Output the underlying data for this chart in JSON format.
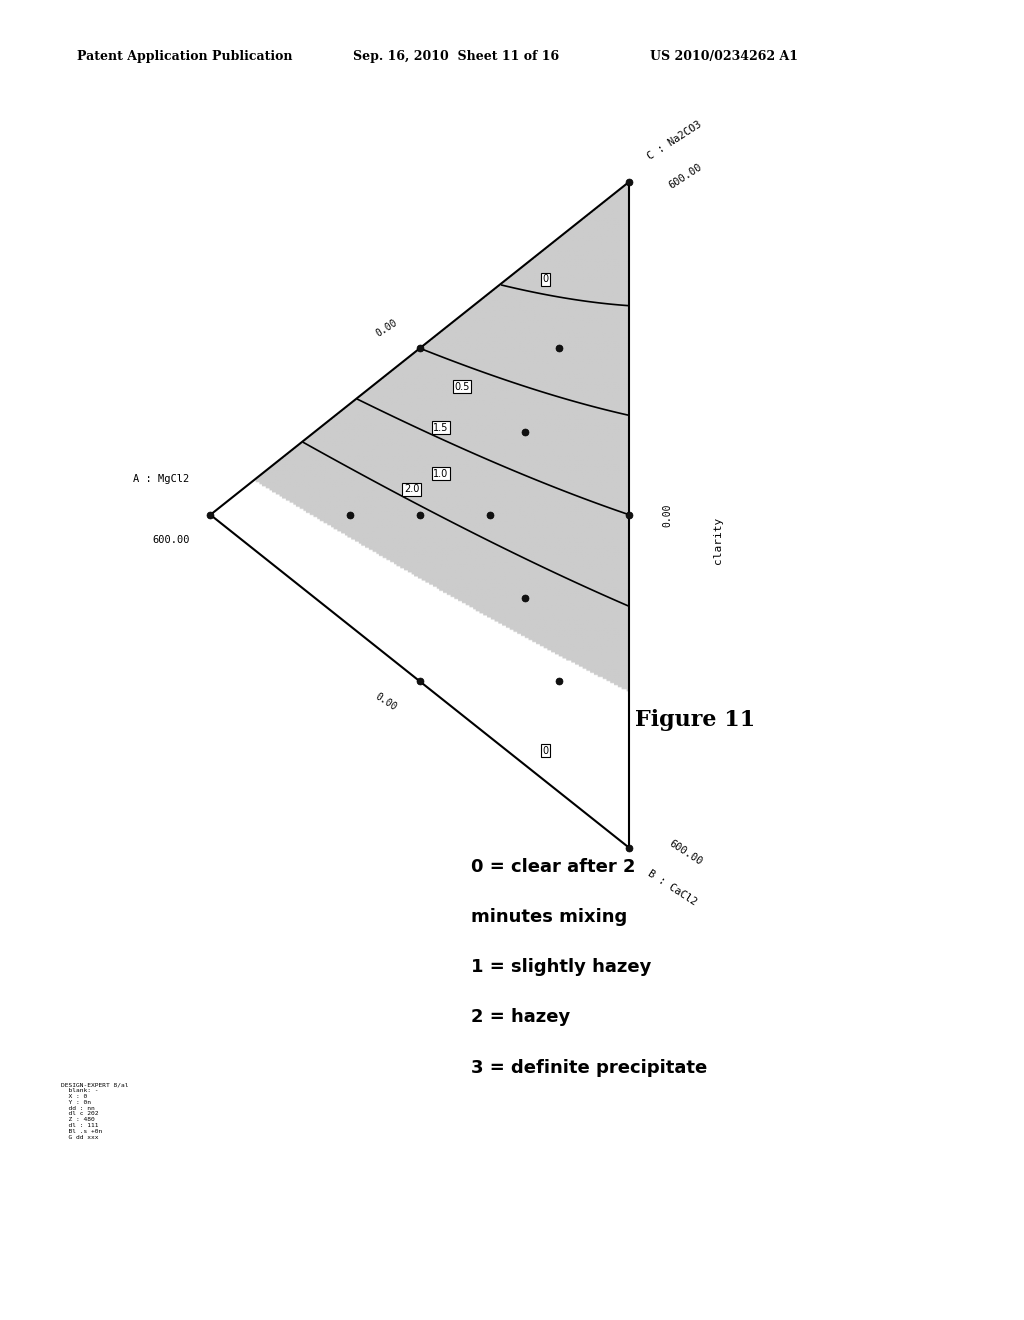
{
  "title_left": "Patent Application Publication",
  "title_center": "Sep. 16, 2010  Sheet 11 of 16",
  "title_right": "US 2010/0234262 A1",
  "figure_label": "Figure 11",
  "legend_lines": [
    "0 = clear after 2",
    "minutes mixing",
    "1 = slightly hazey",
    "2 = hazey",
    "3 = definite precipitate"
  ],
  "bg_color": "#ffffff",
  "contour_levels": [
    0.0,
    0.5,
    1.0,
    1.5,
    2.0
  ],
  "contour_label_map": {
    "0.0": "0",
    "0.5": "0.5",
    "1.0": "1.0",
    "1.5": "1.5",
    "2.0": "2.0"
  },
  "dot_color": "#111111",
  "shaded_color": "#cccccc"
}
